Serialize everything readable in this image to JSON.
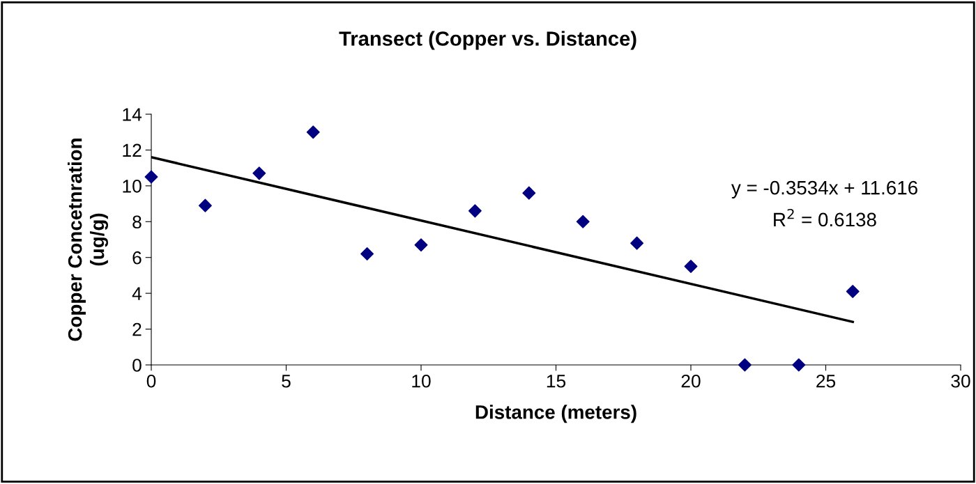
{
  "chart_data": {
    "type": "scatter",
    "title": "Transect (Copper vs. Distance)",
    "xlabel": "Distance (meters)",
    "ylabel": "Copper Concetnration\n(ug/g)",
    "annotations": [
      "y = -0.3534x + 11.616",
      "R$^{2}$ = 0.6138"
    ],
    "series": [
      {
        "color": "#000080",
        "marker": "diamond",
        "x": [
          0,
          2,
          4,
          6,
          8,
          10,
          12,
          14,
          16,
          18,
          20,
          22,
          24,
          26
        ],
        "values": [
          10.5,
          8.9,
          10.7,
          13.0,
          6.2,
          6.7,
          8.6,
          9.6,
          8.0,
          6.8,
          5.5,
          0,
          0,
          4.1
        ]
      },
      {
        "type": "line",
        "color": "#000000",
        "marker": "none",
        "line_style": "solid",
        "x": [
          0,
          26
        ],
        "values": [
          11.6,
          2.4
        ]
      }
    ],
    "xlim": [
      0,
      30
    ],
    "xticks": [
      0,
      5,
      10,
      15,
      20,
      25,
      30
    ],
    "ylim": [
      0,
      14
    ],
    "yticks": [
      0,
      2,
      4,
      6,
      8,
      10,
      12,
      14
    ],
    "grid": false,
    "legend": false
  }
}
